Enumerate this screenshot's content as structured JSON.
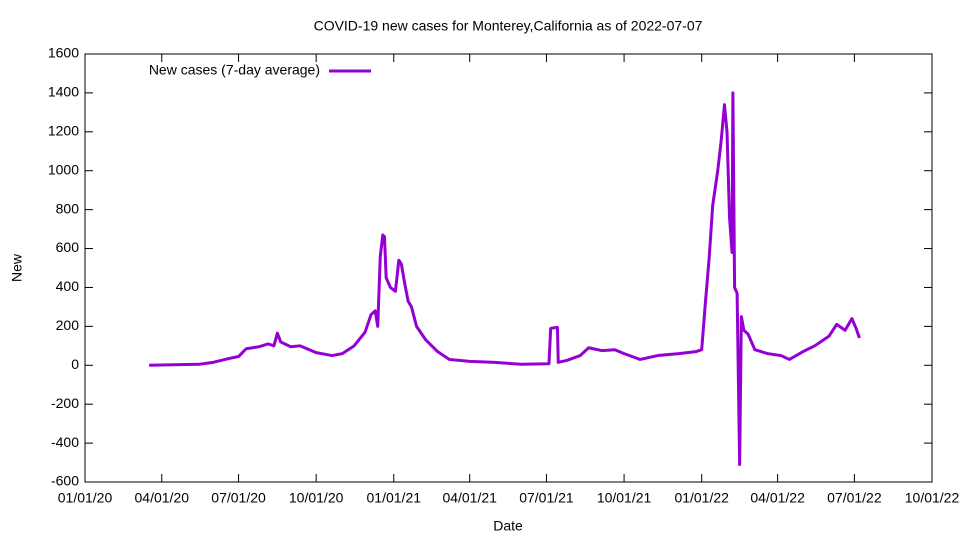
{
  "chart_data": {
    "type": "line",
    "title": "COVID-19 new cases for Monterey,California as of 2022-07-07",
    "xlabel": "Date",
    "ylabel": "New",
    "x": [
      "2020-03-17",
      "2020-04-15",
      "2020-05-15",
      "2020-06-01",
      "2020-06-20",
      "2020-07-01",
      "2020-07-10",
      "2020-07-25",
      "2020-08-05",
      "2020-08-12",
      "2020-08-16",
      "2020-08-20",
      "2020-09-01",
      "2020-09-12",
      "2020-10-01",
      "2020-10-20",
      "2020-11-01",
      "2020-11-15",
      "2020-11-28",
      "2020-12-05",
      "2020-12-10",
      "2020-12-13",
      "2020-12-16",
      "2020-12-19",
      "2020-12-21",
      "2020-12-23",
      "2020-12-28",
      "2021-01-03",
      "2021-01-07",
      "2021-01-10",
      "2021-01-14",
      "2021-01-18",
      "2021-01-22",
      "2021-01-28",
      "2021-02-08",
      "2021-02-22",
      "2021-03-08",
      "2021-04-01",
      "2021-05-01",
      "2021-06-01",
      "2021-07-04",
      "2021-07-06",
      "2021-07-14",
      "2021-07-15",
      "2021-07-25",
      "2021-08-10",
      "2021-08-20",
      "2021-09-05",
      "2021-09-20",
      "2021-10-01",
      "2021-10-20",
      "2021-11-10",
      "2021-12-05",
      "2021-12-25",
      "2022-01-01",
      "2022-01-05",
      "2022-01-10",
      "2022-01-14",
      "2022-01-20",
      "2022-01-24",
      "2022-01-28",
      "2022-01-31",
      "2022-02-03",
      "2022-02-06",
      "2022-02-07",
      "2022-02-09",
      "2022-02-12",
      "2022-02-15",
      "2022-02-17",
      "2022-02-20",
      "2022-02-25",
      "2022-03-05",
      "2022-03-20",
      "2022-04-05",
      "2022-04-15",
      "2022-05-01",
      "2022-05-15",
      "2022-06-01",
      "2022-06-10",
      "2022-06-20",
      "2022-06-28",
      "2022-07-03",
      "2022-07-07"
    ],
    "series": [
      {
        "name": "New cases (7-day average)",
        "color": "#9400d3",
        "values": [
          0,
          3,
          5,
          15,
          35,
          45,
          85,
          95,
          110,
          100,
          165,
          120,
          95,
          100,
          65,
          50,
          60,
          100,
          170,
          260,
          280,
          200,
          560,
          670,
          660,
          450,
          400,
          380,
          540,
          520,
          420,
          330,
          300,
          200,
          130,
          70,
          30,
          20,
          15,
          5,
          8,
          190,
          195,
          15,
          25,
          50,
          90,
          75,
          80,
          60,
          30,
          50,
          60,
          70,
          80,
          300,
          560,
          820,
          1000,
          1150,
          1340,
          1200,
          760,
          580,
          1400,
          400,
          370,
          -510,
          250,
          180,
          160,
          80,
          60,
          50,
          30,
          70,
          100,
          150,
          210,
          180,
          240,
          190,
          140
        ]
      }
    ],
    "xlim": [
      "2020-01-01",
      "2022-10-01"
    ],
    "xticks": [
      {
        "value": "2020-01-01",
        "label": "01/01/20"
      },
      {
        "value": "2020-04-01",
        "label": "04/01/20"
      },
      {
        "value": "2020-07-01",
        "label": "07/01/20"
      },
      {
        "value": "2020-10-01",
        "label": "10/01/20"
      },
      {
        "value": "2021-01-01",
        "label": "01/01/21"
      },
      {
        "value": "2021-04-01",
        "label": "04/01/21"
      },
      {
        "value": "2021-07-01",
        "label": "07/01/21"
      },
      {
        "value": "2021-10-01",
        "label": "10/01/21"
      },
      {
        "value": "2022-01-01",
        "label": "01/01/22"
      },
      {
        "value": "2022-04-01",
        "label": "04/01/22"
      },
      {
        "value": "2022-07-01",
        "label": "07/01/22"
      },
      {
        "value": "2022-10-01",
        "label": "10/01/22"
      }
    ],
    "ylim": [
      -600,
      1600
    ],
    "yticks": [
      -600,
      -400,
      -200,
      0,
      200,
      400,
      600,
      800,
      1000,
      1200,
      1400,
      1600
    ],
    "grid": false,
    "legend": "top-left"
  }
}
